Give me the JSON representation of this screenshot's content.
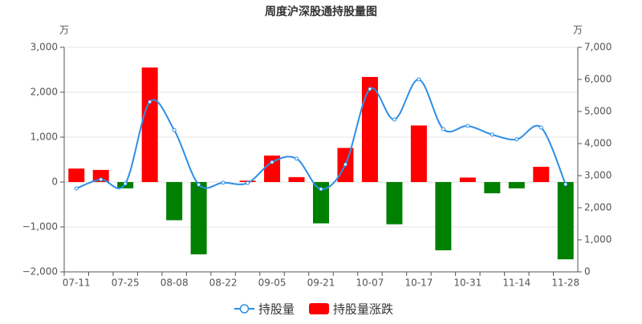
{
  "chart_data": {
    "type": "bar-line",
    "title": "周度沪深股通持股量图",
    "y_unit": "万",
    "y2_unit": "万",
    "categories": [
      "07-11",
      null,
      "07-25",
      null,
      "08-08",
      null,
      "08-22",
      null,
      "09-05",
      null,
      "09-21",
      null,
      "10-07",
      null,
      "10-17",
      null,
      "10-31",
      null,
      "11-14",
      null,
      "11-28"
    ],
    "series": [
      {
        "name": "持股量",
        "type": "line",
        "axis": "y2",
        "color": "#2e8fe6",
        "values": [
          2600,
          2880,
          2750,
          5300,
          4420,
          2720,
          2780,
          2770,
          3420,
          3530,
          2580,
          3350,
          5700,
          4750,
          6000,
          4450,
          4550,
          4280,
          4130,
          4500,
          2730
        ]
      },
      {
        "name": "持股量涨跌",
        "type": "bar",
        "axis": "y",
        "color": "#ff0000",
        "negative_color": "#008000",
        "values": [
          300,
          270,
          -140,
          2550,
          -850,
          -1610,
          0,
          30,
          590,
          110,
          -920,
          760,
          2340,
          -940,
          1260,
          -1520,
          100,
          -250,
          -140,
          340,
          -1720
        ]
      }
    ],
    "ylim": [
      -2000,
      3000
    ],
    "yticks": [
      {
        "value": -2000,
        "label": "−2,000"
      },
      {
        "value": -1000,
        "label": "−1,000"
      },
      0,
      {
        "value": 1000,
        "label": "1,000"
      },
      {
        "value": 2000,
        "label": "2,000"
      },
      {
        "value": 3000,
        "label": "3,000"
      }
    ],
    "y2lim": [
      0,
      7000
    ],
    "y2ticks": [
      0,
      {
        "value": 1000,
        "label": "1,000"
      },
      {
        "value": 2000,
        "label": "2,000"
      },
      {
        "value": 3000,
        "label": "3,000"
      },
      {
        "value": 4000,
        "label": "4,000"
      },
      {
        "value": 5000,
        "label": "5,000"
      },
      {
        "value": 6000,
        "label": "6,000"
      },
      {
        "value": 7000,
        "label": "7,000"
      }
    ],
    "grid": true,
    "legend": "bottom"
  }
}
